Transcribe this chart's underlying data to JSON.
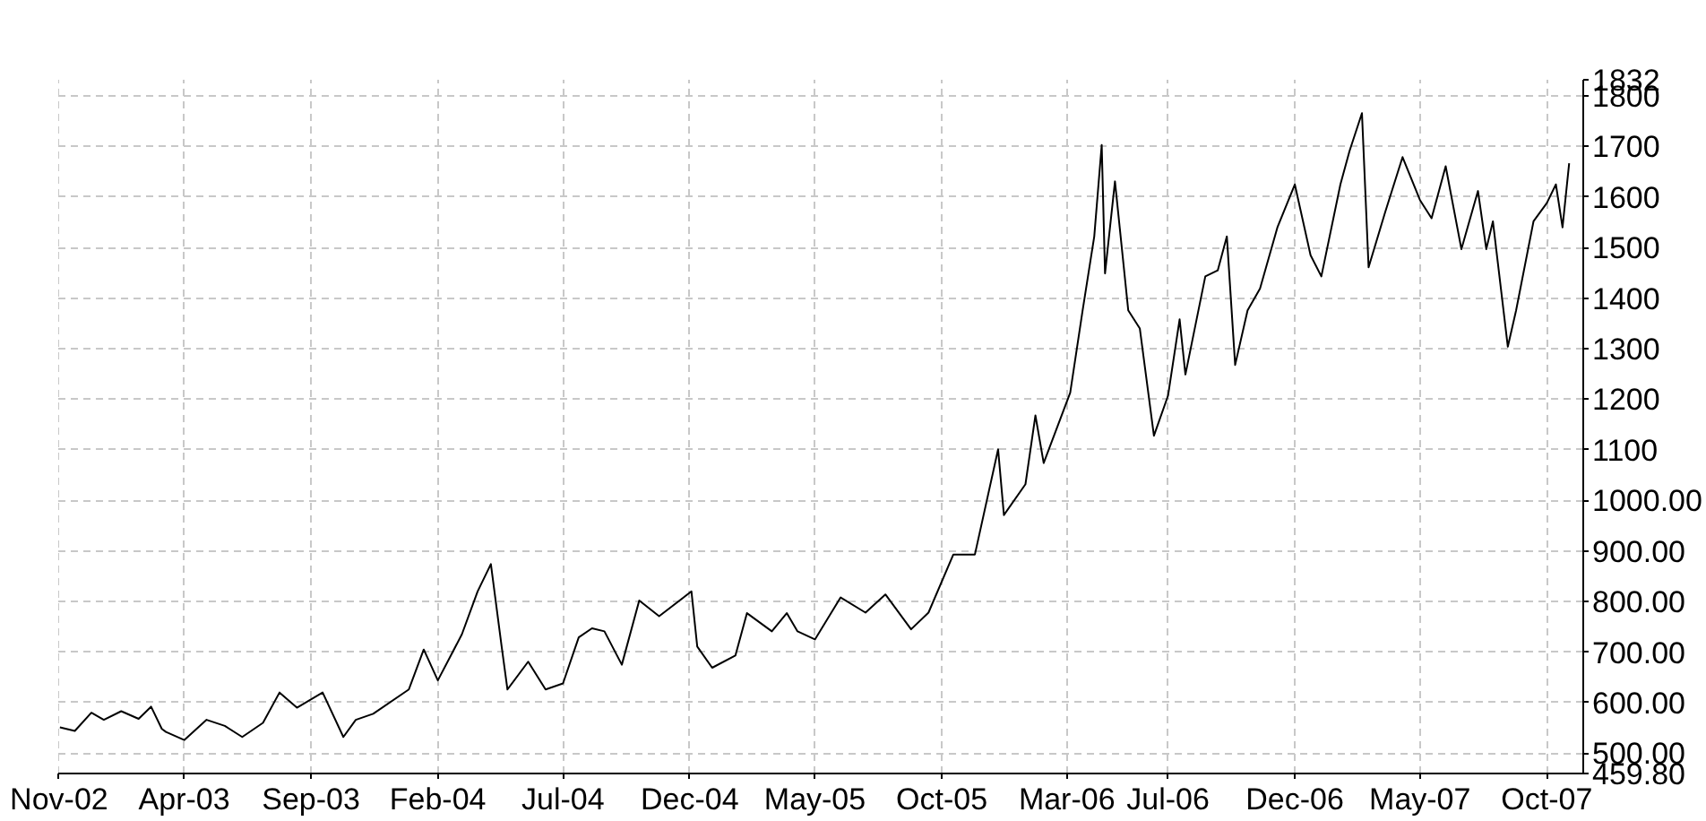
{
  "chart_data": {
    "type": "line",
    "grid": true,
    "marker": "none",
    "line_style": "solid",
    "x": [
      "2002-11-02",
      "2002-11-20",
      "2002-12-10",
      "2002-12-25",
      "2003-01-15",
      "2003-02-05",
      "2003-02-20",
      "2003-03-05",
      "2003-03-10",
      "2003-04-01",
      "2003-04-28",
      "2003-05-20",
      "2003-06-10",
      "2003-07-05",
      "2003-07-25",
      "2003-08-15",
      "2003-09-15",
      "2003-10-10",
      "2003-10-25",
      "2003-11-15",
      "2003-12-28",
      "2004-01-15",
      "2004-02-01",
      "2004-03-01",
      "2004-03-20",
      "2004-04-05",
      "2004-04-18",
      "2004-04-25",
      "2004-05-20",
      "2004-06-10",
      "2004-07-01",
      "2004-07-20",
      "2004-08-05",
      "2004-08-20",
      "2004-09-10",
      "2004-10-01",
      "2004-10-25",
      "2004-12-03",
      "2004-12-10",
      "2004-12-28",
      "2005-01-25",
      "2005-02-08",
      "2005-03-10",
      "2005-03-28",
      "2005-04-10",
      "2005-05-01",
      "2005-06-01",
      "2005-07-01",
      "2005-07-25",
      "2005-08-25",
      "2005-09-15",
      "2005-10-15",
      "2005-11-10",
      "2005-12-08",
      "2005-12-15",
      "2006-01-10",
      "2006-01-22",
      "2006-02-01",
      "2006-03-05",
      "2006-03-20",
      "2006-04-03",
      "2006-04-12",
      "2006-04-16",
      "2006-04-28",
      "2006-05-14",
      "2006-05-28",
      "2006-06-14",
      "2006-07-01",
      "2006-07-15",
      "2006-07-22",
      "2006-08-15",
      "2006-08-30",
      "2006-09-10",
      "2006-09-20",
      "2006-10-05",
      "2006-10-20",
      "2006-11-10",
      "2006-12-01",
      "2006-12-20",
      "2007-01-02",
      "2007-01-25",
      "2007-02-05",
      "2007-02-20",
      "2007-02-28",
      "2007-03-20",
      "2007-04-10",
      "2007-05-01",
      "2007-05-15",
      "2007-06-01",
      "2007-06-20",
      "2007-07-10",
      "2007-07-20",
      "2007-07-28",
      "2007-08-15",
      "2007-08-25",
      "2007-09-15",
      "2007-10-01",
      "2007-10-12",
      "2007-10-20",
      "2007-10-28"
    ],
    "series": [
      {
        "color": "#000000",
        "values": [
          551,
          544,
          580,
          566,
          583,
          568,
          592,
          548,
          542,
          526,
          566,
          554,
          532,
          560,
          620,
          590,
          620,
          532,
          566,
          578,
          626,
          705,
          644,
          735,
          820,
          874,
          711,
          626,
          681,
          626,
          638,
          729,
          747,
          741,
          675,
          802,
          771,
          820,
          711,
          669,
          693,
          777,
          741,
          777,
          741,
          725,
          808,
          778,
          814,
          745,
          778,
          893,
          893,
          1101,
          971,
          1032,
          1168,
          1074,
          1213,
          1376,
          1522,
          1703,
          1449,
          1631,
          1376,
          1340,
          1128,
          1207,
          1358,
          1249,
          1443,
          1455,
          1522,
          1268,
          1376,
          1419,
          1540,
          1625,
          1485,
          1443,
          1625,
          1691,
          1766,
          1461,
          1570,
          1679,
          1594,
          1558,
          1661,
          1497,
          1612,
          1497,
          1552,
          1304,
          1376,
          1552,
          1588,
          1625,
          1540,
          1667
        ]
      }
    ],
    "xlim": [
      "2002-10-31",
      "2007-11-14"
    ],
    "xticks": [
      {
        "value": "2002-11-01",
        "label": "Nov-02"
      },
      {
        "value": "2003-04-01",
        "label": "Apr-03"
      },
      {
        "value": "2003-09-01",
        "label": "Sep-03"
      },
      {
        "value": "2004-02-01",
        "label": "Feb-04"
      },
      {
        "value": "2004-07-01",
        "label": "Jul-04"
      },
      {
        "value": "2004-12-01",
        "label": "Dec-04"
      },
      {
        "value": "2005-05-01",
        "label": "May-05"
      },
      {
        "value": "2005-10-01",
        "label": "Oct-05"
      },
      {
        "value": "2006-03-01",
        "label": "Mar-06"
      },
      {
        "value": "2006-07-01",
        "label": "Jul-06"
      },
      {
        "value": "2006-12-01",
        "label": "Dec-06"
      },
      {
        "value": "2007-05-01",
        "label": "May-07"
      },
      {
        "value": "2007-10-01",
        "label": "Oct-07"
      }
    ],
    "ylim": [
      459.8,
      1832
    ],
    "yticks": [
      {
        "value": 459.8,
        "label": "459.80"
      },
      {
        "value": 500,
        "label": "500.00"
      },
      {
        "value": 600,
        "label": "600.00"
      },
      {
        "value": 700,
        "label": "700.00"
      },
      {
        "value": 800,
        "label": "800.00"
      },
      {
        "value": 900,
        "label": "900.00"
      },
      {
        "value": 1000,
        "label": "1000.00"
      },
      1100,
      1200,
      1300,
      1400,
      1500,
      1600,
      1700,
      1800,
      1832
    ]
  }
}
